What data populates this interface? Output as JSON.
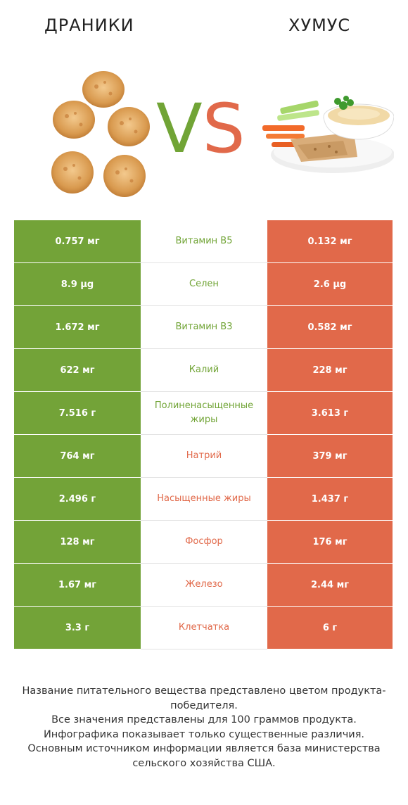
{
  "header": {
    "left_title": "ДРАНИКИ",
    "right_title": "ХУМУС",
    "vs_v": "V",
    "vs_s": "S"
  },
  "colors": {
    "left_winner": "#73a338",
    "right_winner": "#e1694a",
    "row_divider": "#e3e3e3"
  },
  "rows": [
    {
      "left": "0.757 мг",
      "name": "Витамин B5",
      "right": "0.132 мг",
      "winner": "left"
    },
    {
      "left": "8.9 µg",
      "name": "Селен",
      "right": "2.6 µg",
      "winner": "left"
    },
    {
      "left": "1.672 мг",
      "name": "Витамин B3",
      "right": "0.582 мг",
      "winner": "left"
    },
    {
      "left": "622 мг",
      "name": "Калий",
      "right": "228 мг",
      "winner": "left"
    },
    {
      "left": "7.516 г",
      "name": "Полиненасыщенные жиры",
      "right": "3.613 г",
      "winner": "left"
    },
    {
      "left": "764 мг",
      "name": "Натрий",
      "right": "379 мг",
      "winner": "right"
    },
    {
      "left": "2.496 г",
      "name": "Насыщенные жиры",
      "right": "1.437 г",
      "winner": "right"
    },
    {
      "left": "128 мг",
      "name": "Фосфор",
      "right": "176 мг",
      "winner": "right"
    },
    {
      "left": "1.67 мг",
      "name": "Железо",
      "right": "2.44 мг",
      "winner": "right"
    },
    {
      "left": "3.3 г",
      "name": "Клетчатка",
      "right": "6 г",
      "winner": "right"
    }
  ],
  "footer": {
    "line1": "Название питательного вещества представлено цветом продукта-победителя.",
    "line2": "Все значения представлены для 100 граммов продукта.",
    "line3": "Инфографика показывает только существенные различия.",
    "line4": "Основным источником информации является база министерства сельского хозяйства США."
  }
}
